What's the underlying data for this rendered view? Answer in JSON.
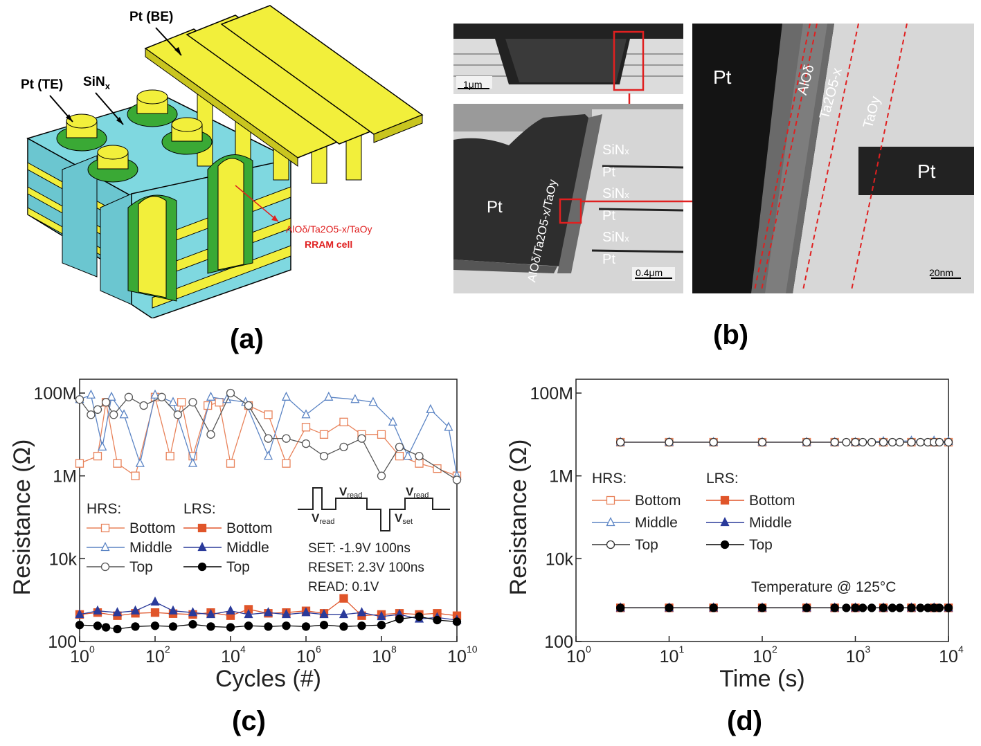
{
  "panel_labels": {
    "a": "(a)",
    "b": "(b)",
    "c": "(c)",
    "d": "(d)"
  },
  "panel_a": {
    "label_be": "Pt (BE)",
    "label_te": "Pt (TE)",
    "label_sin": "SiN",
    "label_sin_sub": "x",
    "cell_line1": "AlOδ/Ta2O5-x/TaOy",
    "cell_line2": "RRAM cell",
    "colors": {
      "cyan": "#7fd8e0",
      "yellow": "#f2ef3b",
      "green": "#3aa935",
      "red": "#e02020"
    }
  },
  "panel_b": {
    "scale_top": "1μm",
    "scale_mid": "0.4μm",
    "scale_right": "20nm",
    "pt": "Pt",
    "sin": "SiN",
    "sin_sub": "x",
    "stack_label": "AlOδ/Ta2O5-x/TaOy",
    "layer_alo": "AlOδ",
    "layer_ta2o5": "Ta2O5-x",
    "layer_taoy": "TaOy"
  },
  "chart_data": [
    {
      "type": "line",
      "panel": "c",
      "xlabel": "Cycles (#)",
      "ylabel": "Resistance (Ω)",
      "x_scale": "log",
      "y_scale": "log",
      "xlim": [
        1,
        10000000000
      ],
      "ylim": [
        100,
        100000000
      ],
      "x_ticks": [
        "10",
        "10",
        "10",
        "10",
        "10",
        "10"
      ],
      "x_tick_exps": [
        "0",
        "2",
        "4",
        "6",
        "8",
        "10"
      ],
      "y_ticks": [
        "100M",
        "1M",
        "10k",
        "100"
      ],
      "legend": {
        "hrs_title": "HRS:",
        "lrs_title": "LRS:",
        "entries": [
          "Bottom",
          "Middle",
          "Top"
        ]
      },
      "pulse": {
        "v_read": "V",
        "v_read_sub": "read",
        "v_set": "V",
        "v_set_sub": "set"
      },
      "annotations": [
        "SET: -1.9V 100ns",
        "RESET: 2.3V 100ns",
        "READ: 0.1V"
      ],
      "series": [
        {
          "name": "Bottom",
          "state": "HRS",
          "color": "#e8825a",
          "marker": "square-open",
          "x": [
            1,
            3,
            5,
            10,
            30,
            100,
            250,
            500,
            1000,
            2500,
            5000,
            10000,
            30000,
            100000,
            300000,
            1000000,
            3000000,
            10000000,
            30000000,
            100000000,
            300000000,
            1000000000,
            3000000000,
            10000000000
          ],
          "values": [
            2000000,
            3000000,
            60000000,
            2000000,
            1000000,
            80000000,
            3000000,
            60000000,
            3000000,
            50000000,
            60000000,
            2000000,
            50000000,
            30000000,
            2000000,
            15000000,
            10000000,
            20000000,
            10000000,
            10000000,
            3000000,
            2000000,
            1500000,
            1000000
          ]
        },
        {
          "name": "Middle",
          "state": "HRS",
          "color": "#5b84c4",
          "marker": "triangle-open",
          "x": [
            1,
            2,
            4,
            7,
            15,
            40,
            100,
            300,
            1000,
            3000,
            8000,
            25000,
            100000,
            300000,
            1000000,
            4000000,
            20000000,
            60000000,
            200000000,
            500000000,
            2000000000,
            6000000000,
            10000000000
          ],
          "values": [
            70000000,
            90000000,
            5000000,
            80000000,
            30000000,
            2000000,
            90000000,
            60000000,
            2000000,
            80000000,
            70000000,
            60000000,
            3000000,
            80000000,
            30000000,
            80000000,
            70000000,
            60000000,
            20000000,
            3000000,
            40000000,
            15000000,
            1000000
          ]
        },
        {
          "name": "Top",
          "state": "HRS",
          "color": "#555555",
          "marker": "circle-open",
          "x": [
            1,
            2,
            3,
            5,
            8,
            20,
            50,
            150,
            400,
            1000,
            3000,
            10000,
            30000,
            100000,
            300000,
            1000000,
            3000000,
            10000000,
            30000000,
            100000000,
            300000000,
            1000000000,
            10000000000
          ],
          "values": [
            70000000,
            30000000,
            40000000,
            60000000,
            30000000,
            80000000,
            50000000,
            80000000,
            30000000,
            60000000,
            10000000,
            100000000,
            50000000,
            8000000,
            8000000,
            6000000,
            3000000,
            5000000,
            8000000,
            1000000,
            5000000,
            3000000,
            800000
          ]
        },
        {
          "name": "Bottom",
          "state": "LRS",
          "color": "#e0552a",
          "marker": "square-filled",
          "x": [
            1,
            3,
            10,
            30,
            100,
            300,
            1000,
            3000,
            10000,
            30000,
            100000,
            300000,
            1000000,
            3000000,
            10000000,
            30000000,
            100000000,
            300000000,
            1000000000,
            3000000000,
            10000000000
          ],
          "values": [
            450,
            500,
            420,
            480,
            500,
            470,
            450,
            500,
            420,
            600,
            480,
            500,
            550,
            480,
            1100,
            420,
            450,
            480,
            450,
            480,
            420
          ]
        },
        {
          "name": "Middle",
          "state": "LRS",
          "color": "#2a3a9a",
          "marker": "triangle-filled",
          "x": [
            1,
            3,
            10,
            30,
            100,
            300,
            1000,
            3000,
            10000,
            30000,
            100000,
            300000,
            1000000,
            3000000,
            10000000,
            30000000,
            100000000,
            300000000,
            1000000000,
            3000000000,
            10000000000
          ],
          "values": [
            450,
            550,
            500,
            550,
            900,
            550,
            500,
            450,
            550,
            450,
            500,
            450,
            500,
            450,
            450,
            500,
            400,
            450,
            350,
            380,
            330
          ]
        },
        {
          "name": "Top",
          "state": "LRS",
          "color": "#000000",
          "marker": "circle-filled",
          "x": [
            1,
            3,
            5,
            10,
            30,
            100,
            300,
            1000,
            3000,
            10000,
            30000,
            100000,
            300000,
            1000000,
            3000000,
            10000000,
            30000000,
            100000000,
            300000000,
            1000000000,
            3000000000,
            10000000000
          ],
          "values": [
            250,
            240,
            220,
            200,
            230,
            240,
            230,
            260,
            230,
            220,
            240,
            230,
            240,
            230,
            250,
            230,
            240,
            250,
            350,
            400,
            330,
            300
          ]
        }
      ]
    },
    {
      "type": "line",
      "panel": "d",
      "xlabel": "Time (s)",
      "ylabel": "Resistance (Ω)",
      "x_scale": "log",
      "y_scale": "log",
      "xlim": [
        1,
        10000
      ],
      "ylim": [
        100,
        100000000
      ],
      "x_ticks": [
        "10",
        "10",
        "10",
        "10",
        "10"
      ],
      "x_tick_exps": [
        "0",
        "1",
        "2",
        "3",
        "4"
      ],
      "y_ticks": [
        "100M",
        "1M",
        "10k",
        "100"
      ],
      "legend": {
        "hrs_title": "HRS:",
        "lrs_title": "LRS:",
        "entries": [
          "Bottom",
          "Middle",
          "Top"
        ]
      },
      "annotation": "Temperature @ 125°C",
      "series": [
        {
          "name": "Bottom",
          "state": "HRS",
          "color": "#e8825a",
          "marker": "square-open",
          "x": [
            3,
            10,
            30,
            100,
            300,
            600,
            1000,
            2000,
            4000,
            7000,
            10000
          ],
          "values": [
            6500000,
            6500000,
            6500000,
            6500000,
            6500000,
            6500000,
            6500000,
            6500000,
            6500000,
            6500000,
            6500000
          ]
        },
        {
          "name": "Middle",
          "state": "HRS",
          "color": "#5b84c4",
          "marker": "triangle-open",
          "x": [
            3,
            10,
            30,
            100,
            300,
            600,
            1000,
            2000,
            4000,
            7000,
            10000
          ],
          "values": [
            6500000,
            6500000,
            6500000,
            6500000,
            6500000,
            6500000,
            6500000,
            6800000,
            7000000,
            7000000,
            6800000
          ]
        },
        {
          "name": "Top",
          "state": "HRS",
          "color": "#333333",
          "marker": "circle-open",
          "x": [
            3,
            10,
            30,
            100,
            300,
            600,
            800,
            1000,
            1200,
            1500,
            2000,
            2500,
            3000,
            4000,
            5000,
            6000,
            7000,
            8000,
            10000
          ],
          "values": [
            6500000,
            6500000,
            6500000,
            6500000,
            6500000,
            6500000,
            6500000,
            6500000,
            6500000,
            6500000,
            6500000,
            6500000,
            6500000,
            6500000,
            6500000,
            6500000,
            6500000,
            6500000,
            6500000
          ]
        },
        {
          "name": "Bottom",
          "state": "LRS",
          "color": "#e0552a",
          "marker": "square-filled",
          "x": [
            3,
            10,
            30,
            100,
            300,
            600,
            1000,
            2000,
            4000,
            7000,
            10000
          ],
          "values": [
            650,
            650,
            650,
            650,
            650,
            650,
            650,
            650,
            650,
            650,
            650
          ]
        },
        {
          "name": "Middle",
          "state": "LRS",
          "color": "#2a3a9a",
          "marker": "triangle-filled",
          "x": [
            3,
            10,
            30,
            100,
            300,
            600,
            1000,
            2000,
            4000,
            7000,
            10000
          ],
          "values": [
            650,
            650,
            650,
            650,
            650,
            650,
            650,
            650,
            650,
            650,
            650
          ]
        },
        {
          "name": "Top",
          "state": "LRS",
          "color": "#000000",
          "marker": "circle-filled",
          "x": [
            3,
            10,
            30,
            100,
            300,
            600,
            800,
            1000,
            1200,
            1500,
            2000,
            2500,
            3000,
            4000,
            5000,
            6000,
            7000,
            8000,
            10000
          ],
          "values": [
            650,
            650,
            650,
            650,
            650,
            650,
            650,
            650,
            650,
            650,
            650,
            650,
            650,
            650,
            650,
            650,
            650,
            650,
            650
          ]
        }
      ]
    }
  ]
}
